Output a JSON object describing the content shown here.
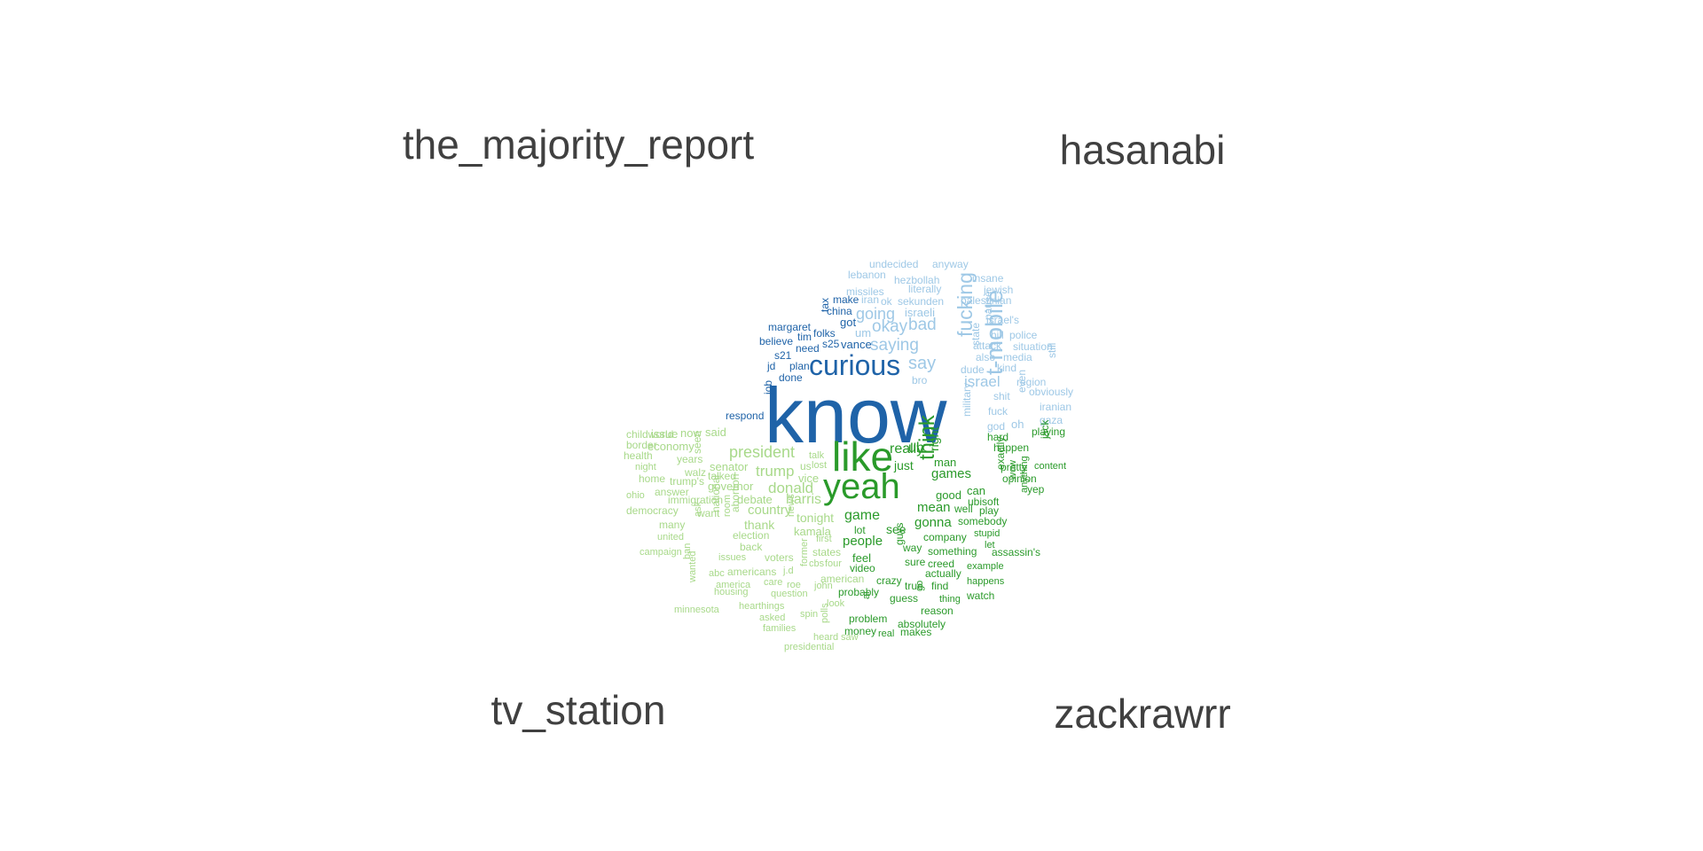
{
  "groups": {
    "top_left": "the_majority_report",
    "top_right": "hasanabi",
    "bottom_left": "tv_station",
    "bottom_right": "zackrawrr"
  },
  "colors": {
    "dark_blue": "#1f63a8",
    "light_blue": "#9ec8e6",
    "green": "#2a9a2a",
    "light_green": "#a8d98a"
  },
  "words": [
    {
      "t": "know",
      "c": "dark_blue"
    },
    {
      "t": "like",
      "c": "green"
    },
    {
      "t": "yeah",
      "c": "green"
    },
    {
      "t": "curious",
      "c": "dark_blue"
    },
    {
      "t": "t-mobile",
      "c": "light_blue"
    },
    {
      "t": "think",
      "c": "green"
    },
    {
      "t": "fucking",
      "c": "light_blue"
    },
    {
      "t": "saying",
      "c": "light_blue"
    },
    {
      "t": "say",
      "c": "light_blue"
    },
    {
      "t": "israel",
      "c": "light_blue"
    },
    {
      "t": "okay",
      "c": "light_blue"
    },
    {
      "t": "bad",
      "c": "light_blue"
    },
    {
      "t": "going",
      "c": "light_blue"
    },
    {
      "t": "president",
      "c": "light_green"
    },
    {
      "t": "trump",
      "c": "light_green"
    },
    {
      "t": "donald",
      "c": "light_green"
    },
    {
      "t": "harris",
      "c": "light_green"
    },
    {
      "t": "really",
      "c": "green"
    },
    {
      "t": "uh",
      "c": "green"
    },
    {
      "t": "game",
      "c": "green"
    },
    {
      "t": "gonna",
      "c": "green"
    },
    {
      "t": "mean",
      "c": "green"
    },
    {
      "t": "games",
      "c": "green"
    },
    {
      "t": "right",
      "c": "green"
    },
    {
      "t": "people",
      "c": "green"
    },
    {
      "t": "see",
      "c": "green"
    },
    {
      "t": "just",
      "c": "green"
    },
    {
      "t": "man",
      "c": "green"
    },
    {
      "t": "good",
      "c": "green"
    },
    {
      "t": "undecided",
      "c": "light_blue"
    },
    {
      "t": "anyway",
      "c": "light_blue"
    },
    {
      "t": "lebanon",
      "c": "light_blue"
    },
    {
      "t": "hezbollah",
      "c": "light_blue"
    },
    {
      "t": "insane",
      "c": "light_blue"
    },
    {
      "t": "literally",
      "c": "light_blue"
    },
    {
      "t": "jewish",
      "c": "light_blue"
    },
    {
      "t": "missiles",
      "c": "light_blue"
    },
    {
      "t": "make",
      "c": "dark_blue"
    },
    {
      "t": "iran",
      "c": "light_blue"
    },
    {
      "t": "ok",
      "c": "light_blue"
    },
    {
      "t": "sekunden",
      "c": "light_blue"
    },
    {
      "t": "palestinian",
      "c": "light_blue"
    },
    {
      "t": "tax",
      "c": "dark_blue"
    },
    {
      "t": "china",
      "c": "dark_blue"
    },
    {
      "t": "israeli",
      "c": "light_blue"
    },
    {
      "t": "israel's",
      "c": "light_blue"
    },
    {
      "t": "margaret",
      "c": "dark_blue"
    },
    {
      "t": "got",
      "c": "dark_blue"
    },
    {
      "t": "folks",
      "c": "dark_blue"
    },
    {
      "t": "um",
      "c": "light_blue"
    },
    {
      "t": "pause",
      "c": "light_blue"
    },
    {
      "t": "hill",
      "c": "light_blue"
    },
    {
      "t": "police",
      "c": "light_blue"
    },
    {
      "t": "tim",
      "c": "dark_blue"
    },
    {
      "t": "believe",
      "c": "dark_blue"
    },
    {
      "t": "s25",
      "c": "dark_blue"
    },
    {
      "t": "need",
      "c": "dark_blue"
    },
    {
      "t": "vance",
      "c": "dark_blue"
    },
    {
      "t": "attack",
      "c": "light_blue"
    },
    {
      "t": "state",
      "c": "light_blue"
    },
    {
      "t": "situation",
      "c": "light_blue"
    },
    {
      "t": "s21",
      "c": "dark_blue"
    },
    {
      "t": "also",
      "c": "light_blue"
    },
    {
      "t": "media",
      "c": "light_blue"
    },
    {
      "t": "jd",
      "c": "dark_blue"
    },
    {
      "t": "plan",
      "c": "dark_blue"
    },
    {
      "t": "dude",
      "c": "light_blue"
    },
    {
      "t": "kind",
      "c": "light_blue"
    },
    {
      "t": "still",
      "c": "light_blue"
    },
    {
      "t": "done",
      "c": "dark_blue"
    },
    {
      "t": "bro",
      "c": "light_blue"
    },
    {
      "t": "region",
      "c": "light_blue"
    },
    {
      "t": "job",
      "c": "dark_blue"
    },
    {
      "t": "obviously",
      "c": "light_blue"
    },
    {
      "t": "shit",
      "c": "light_blue"
    },
    {
      "t": "even",
      "c": "light_blue"
    },
    {
      "t": "iranian",
      "c": "light_blue"
    },
    {
      "t": "respond",
      "c": "dark_blue"
    },
    {
      "t": "military",
      "c": "light_blue"
    },
    {
      "t": "fuck",
      "c": "light_blue"
    },
    {
      "t": "gaza",
      "c": "light_blue"
    },
    {
      "t": "god",
      "c": "light_blue"
    },
    {
      "t": "oh",
      "c": "light_blue"
    },
    {
      "t": "playing",
      "c": "green"
    },
    {
      "t": "hard",
      "c": "green"
    },
    {
      "t": "happen",
      "c": "green"
    },
    {
      "t": "jack",
      "c": "green"
    },
    {
      "t": "childworld",
      "c": "light_green"
    },
    {
      "t": "issue",
      "c": "light_green"
    },
    {
      "t": "now",
      "c": "light_green"
    },
    {
      "t": "said",
      "c": "light_green"
    },
    {
      "t": "border",
      "c": "light_green"
    },
    {
      "t": "economy",
      "c": "light_green"
    },
    {
      "t": "talk",
      "c": "light_green"
    },
    {
      "t": "health",
      "c": "light_green"
    },
    {
      "t": "years",
      "c": "light_green"
    },
    {
      "t": "seen",
      "c": "light_green"
    },
    {
      "t": "lost",
      "c": "light_green"
    },
    {
      "t": "us",
      "c": "light_green"
    },
    {
      "t": "night",
      "c": "light_green"
    },
    {
      "t": "senator",
      "c": "light_green"
    },
    {
      "t": "walz",
      "c": "light_green"
    },
    {
      "t": "talked",
      "c": "light_green"
    },
    {
      "t": "vice",
      "c": "light_green"
    },
    {
      "t": "home",
      "c": "light_green"
    },
    {
      "t": "trump's",
      "c": "light_green"
    },
    {
      "t": "governor",
      "c": "light_green"
    },
    {
      "t": "pretty",
      "c": "green"
    },
    {
      "t": "content",
      "c": "green"
    },
    {
      "t": "exactly",
      "c": "green"
    },
    {
      "t": "answer",
      "c": "light_green"
    },
    {
      "t": "can",
      "c": "green"
    },
    {
      "t": "opinion",
      "c": "green"
    },
    {
      "t": "ohio",
      "c": "light_green"
    },
    {
      "t": "immigration",
      "c": "light_green"
    },
    {
      "t": "debate",
      "c": "light_green"
    },
    {
      "t": "wow",
      "c": "green"
    },
    {
      "t": "yep",
      "c": "green"
    },
    {
      "t": "ubisoft",
      "c": "green"
    },
    {
      "t": "democracy",
      "c": "light_green"
    },
    {
      "t": "want",
      "c": "light_green"
    },
    {
      "t": "country",
      "c": "light_green"
    },
    {
      "t": "tonight",
      "c": "light_green"
    },
    {
      "t": "well",
      "c": "green"
    },
    {
      "t": "play",
      "c": "green"
    },
    {
      "t": "anything",
      "c": "green"
    },
    {
      "t": "many",
      "c": "light_green"
    },
    {
      "t": "thank",
      "c": "light_green"
    },
    {
      "t": "somebody",
      "c": "green"
    },
    {
      "t": "ask",
      "c": "light_green"
    },
    {
      "t": "national",
      "c": "light_green"
    },
    {
      "t": "room",
      "c": "light_green"
    },
    {
      "t": "abortion",
      "c": "light_green"
    },
    {
      "t": "news",
      "c": "light_green"
    },
    {
      "t": "kamala",
      "c": "light_green"
    },
    {
      "t": "lot",
      "c": "green"
    },
    {
      "t": "company",
      "c": "green"
    },
    {
      "t": "stupid",
      "c": "green"
    },
    {
      "t": "united",
      "c": "light_green"
    },
    {
      "t": "election",
      "c": "light_green"
    },
    {
      "t": "first",
      "c": "light_green"
    },
    {
      "t": "let",
      "c": "green"
    },
    {
      "t": "campaign",
      "c": "light_green"
    },
    {
      "t": "back",
      "c": "light_green"
    },
    {
      "t": "states",
      "c": "light_green"
    },
    {
      "t": "guys",
      "c": "green"
    },
    {
      "t": "way",
      "c": "green"
    },
    {
      "t": "something",
      "c": "green"
    },
    {
      "t": "assassin's",
      "c": "green"
    },
    {
      "t": "issues",
      "c": "light_green"
    },
    {
      "t": "voters",
      "c": "light_green"
    },
    {
      "t": "feel",
      "c": "green"
    },
    {
      "t": "sure",
      "c": "green"
    },
    {
      "t": "creed",
      "c": "green"
    },
    {
      "t": "ban",
      "c": "light_green"
    },
    {
      "t": "cbs",
      "c": "light_green"
    },
    {
      "t": "four",
      "c": "light_green"
    },
    {
      "t": "video",
      "c": "green"
    },
    {
      "t": "example",
      "c": "green"
    },
    {
      "t": "abc",
      "c": "light_green"
    },
    {
      "t": "americans",
      "c": "light_green"
    },
    {
      "t": "j.d",
      "c": "light_green"
    },
    {
      "t": "former",
      "c": "light_green"
    },
    {
      "t": "actually",
      "c": "green"
    },
    {
      "t": "america",
      "c": "light_green"
    },
    {
      "t": "care",
      "c": "light_green"
    },
    {
      "t": "roe",
      "c": "light_green"
    },
    {
      "t": "american",
      "c": "light_green"
    },
    {
      "t": "crazy",
      "c": "green"
    },
    {
      "t": "true",
      "c": "green"
    },
    {
      "t": "find",
      "c": "green"
    },
    {
      "t": "happens",
      "c": "green"
    },
    {
      "t": "wanted",
      "c": "light_green"
    },
    {
      "t": "housing",
      "c": "light_green"
    },
    {
      "t": "question",
      "c": "light_green"
    },
    {
      "t": "john",
      "c": "light_green"
    },
    {
      "t": "probably",
      "c": "green"
    },
    {
      "t": "guess",
      "c": "green"
    },
    {
      "t": "go",
      "c": "green"
    },
    {
      "t": "thing",
      "c": "green"
    },
    {
      "t": "watch",
      "c": "green"
    },
    {
      "t": "minnesota",
      "c": "light_green"
    },
    {
      "t": "hearthings",
      "c": "light_green"
    },
    {
      "t": "look",
      "c": "light_green"
    },
    {
      "t": "ai",
      "c": "green"
    },
    {
      "t": "reason",
      "c": "green"
    },
    {
      "t": "asked",
      "c": "light_green"
    },
    {
      "t": "spin",
      "c": "light_green"
    },
    {
      "t": "problem",
      "c": "green"
    },
    {
      "t": "absolutely",
      "c": "green"
    },
    {
      "t": "families",
      "c": "light_green"
    },
    {
      "t": "polls",
      "c": "light_green"
    },
    {
      "t": "money",
      "c": "green"
    },
    {
      "t": "real",
      "c": "green"
    },
    {
      "t": "makes",
      "c": "green"
    },
    {
      "t": "heard",
      "c": "light_green"
    },
    {
      "t": "saw",
      "c": "light_green"
    },
    {
      "t": "presidential",
      "c": "light_green"
    }
  ]
}
